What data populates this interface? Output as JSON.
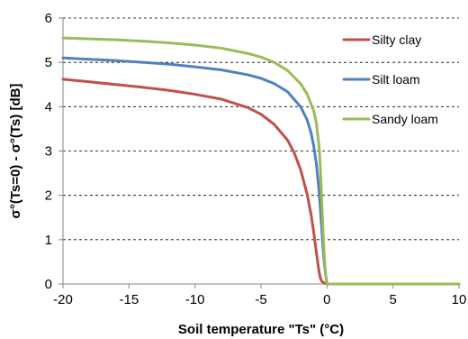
{
  "chart_data": {
    "type": "line",
    "title": "",
    "xlabel": "Soil temperature \"Ts\" (°C)",
    "ylabel": "σ°(Ts=0) - σ°(Ts) [dB]",
    "xlim": [
      -20,
      10
    ],
    "ylim": [
      0,
      6
    ],
    "xticks": [
      -20,
      -15,
      -10,
      -5,
      0,
      5,
      10
    ],
    "yticks": [
      0,
      1,
      2,
      3,
      4,
      5,
      6
    ],
    "grid": "horizontal dashed",
    "legend_position": "top-right",
    "series": [
      {
        "name": "Silty clay",
        "color": "#c0504d",
        "x": [
          -20,
          -18,
          -16,
          -14,
          -12,
          -10,
          -8,
          -6,
          -5,
          -4,
          -3,
          -2.5,
          -2,
          -1.5,
          -1.2,
          -1,
          -0.8,
          -0.7,
          -0.6,
          -0.5,
          -0.4,
          -0.3,
          -0.2,
          0,
          10
        ],
        "y": [
          4.62,
          4.56,
          4.5,
          4.44,
          4.37,
          4.28,
          4.17,
          3.98,
          3.83,
          3.6,
          3.25,
          2.97,
          2.58,
          2.02,
          1.56,
          1.15,
          0.7,
          0.48,
          0.28,
          0.13,
          0.06,
          0.04,
          0.02,
          0,
          0
        ]
      },
      {
        "name": "Silt loam",
        "color": "#4f81bd",
        "x": [
          -20,
          -18,
          -16,
          -14,
          -12,
          -10,
          -8,
          -6,
          -5,
          -4,
          -3,
          -2,
          -1.5,
          -1.2,
          -1,
          -0.8,
          -0.6,
          -0.5,
          -0.4,
          -0.3,
          -0.2,
          -0.1,
          0,
          10
        ],
        "y": [
          5.1,
          5.07,
          5.04,
          5.0,
          4.96,
          4.9,
          4.83,
          4.72,
          4.64,
          4.52,
          4.34,
          4.0,
          3.7,
          3.4,
          3.1,
          2.7,
          2.1,
          1.7,
          1.25,
          0.8,
          0.45,
          0.2,
          0,
          0
        ]
      },
      {
        "name": "Sandy loam",
        "color": "#9bbb59",
        "x": [
          -20,
          -18,
          -16,
          -14,
          -12,
          -10,
          -8,
          -6,
          -5,
          -4,
          -3,
          -2,
          -1.5,
          -1,
          -0.8,
          -0.6,
          -0.5,
          -0.4,
          -0.3,
          -0.2,
          -0.1,
          0,
          10
        ],
        "y": [
          5.55,
          5.53,
          5.51,
          5.48,
          5.44,
          5.39,
          5.32,
          5.2,
          5.12,
          5.0,
          4.82,
          4.52,
          4.28,
          3.9,
          3.62,
          3.1,
          2.6,
          1.9,
          1.2,
          0.6,
          0.2,
          0,
          0
        ]
      }
    ]
  }
}
